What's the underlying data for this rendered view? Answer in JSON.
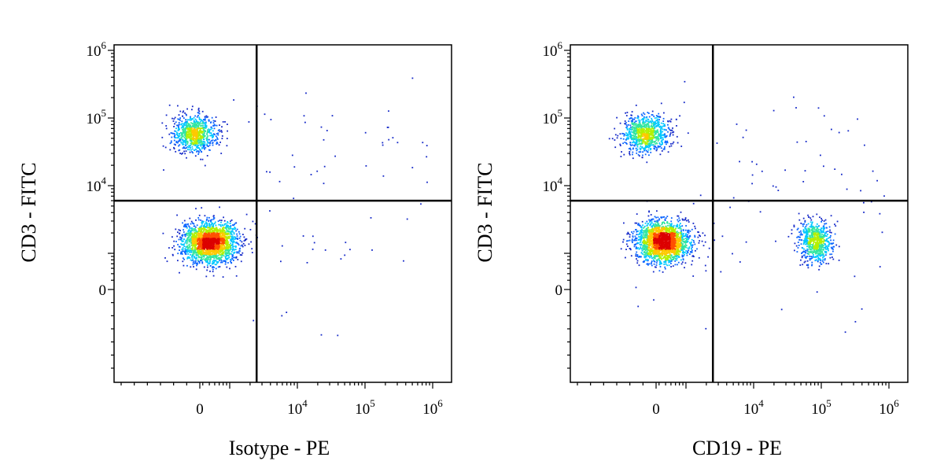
{
  "chart_data": [
    {
      "type": "scatter",
      "style": "density pseudocolor flow cytometry dot plot",
      "xlabel": "Isotype - PE",
      "ylabel": "CD3 - FITC",
      "x_scale": "biexponential",
      "y_scale": "biexponential",
      "x_ticks": [
        {
          "value": 0,
          "base": "0",
          "exp": ""
        },
        {
          "value": 10000,
          "base": "10",
          "exp": "4"
        },
        {
          "value": 100000,
          "base": "10",
          "exp": "5"
        },
        {
          "value": 1000000,
          "base": "10",
          "exp": "6"
        }
      ],
      "y_ticks": [
        {
          "value": 0,
          "base": "0",
          "exp": ""
        },
        {
          "value": 10000,
          "base": "10",
          "exp": "4"
        },
        {
          "value": 100000,
          "base": "10",
          "exp": "5"
        },
        {
          "value": 1000000,
          "base": "10",
          "exp": "6"
        }
      ],
      "quadrant_gate": {
        "x": 2500,
        "y": 6000
      },
      "populations": [
        {
          "name": "",
          "x": 300,
          "y": 60000,
          "n": 900,
          "sx": 0.16,
          "sy": 0.13
        },
        {
          "name": "",
          "x": 500,
          "y": 1500,
          "n": 2200,
          "sx": 0.2,
          "sy": 0.15
        }
      ],
      "scatter_events": 70
    },
    {
      "type": "scatter",
      "style": "density pseudocolor flow cytometry dot plot",
      "xlabel": "CD19 - PE",
      "ylabel": "CD3 - FITC",
      "x_scale": "biexponential",
      "y_scale": "biexponential",
      "x_ticks": [
        {
          "value": 0,
          "base": "0",
          "exp": ""
        },
        {
          "value": 10000,
          "base": "10",
          "exp": "4"
        },
        {
          "value": 100000,
          "base": "10",
          "exp": "5"
        },
        {
          "value": 1000000,
          "base": "10",
          "exp": "6"
        }
      ],
      "y_ticks": [
        {
          "value": 0,
          "base": "0",
          "exp": ""
        },
        {
          "value": 10000,
          "base": "10",
          "exp": "4"
        },
        {
          "value": 100000,
          "base": "10",
          "exp": "5"
        },
        {
          "value": 1000000,
          "base": "10",
          "exp": "6"
        }
      ],
      "quadrant_gate": {
        "x": 2500,
        "y": 6000
      },
      "populations": [
        {
          "name": "",
          "x": 250,
          "y": 60000,
          "n": 900,
          "sx": 0.17,
          "sy": 0.13
        },
        {
          "name": "",
          "x": 450,
          "y": 1500,
          "n": 2100,
          "sx": 0.2,
          "sy": 0.15
        },
        {
          "name": "",
          "x": 80000,
          "y": 1500,
          "n": 700,
          "sx": 0.12,
          "sy": 0.15
        }
      ],
      "scatter_events": 80
    }
  ],
  "colormap": [
    "#1428c8",
    "#0a64ff",
    "#00c8ff",
    "#32e6a0",
    "#b4f000",
    "#ffc800",
    "#ff5000",
    "#dc0000"
  ]
}
